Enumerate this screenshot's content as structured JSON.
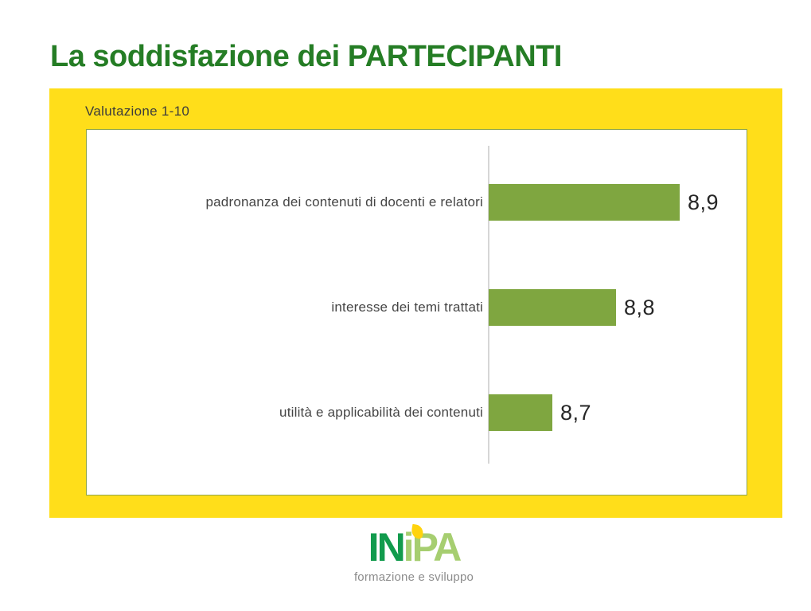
{
  "slide": {
    "title": "La soddisfazione dei PARTECIPANTI",
    "chart_panel_subtitle": "Valutazione 1-10"
  },
  "chart_data": {
    "type": "bar",
    "orientation": "horizontal",
    "title": "Valutazione 1-10",
    "categories": [
      "padronanza dei contenuti di docenti e relatori",
      "interesse dei temi trattati",
      "utilità e applicabilità dei contenuti"
    ],
    "values": [
      8.9,
      8.8,
      8.7
    ],
    "xlim": [
      8.6,
      9.0
    ],
    "gridlines": false,
    "legend": false,
    "bar_color": "#7FA640",
    "axis_color": "#D6D6D6",
    "rows": [
      {
        "label": "padronanza dei contenuti di docenti e relatori",
        "value": 8.9,
        "value_label": "8,9"
      },
      {
        "label": "interesse dei temi trattati",
        "value": 8.8,
        "value_label": "8,8"
      },
      {
        "label": "utilità e applicabilità dei contenuti",
        "value": 8.7,
        "value_label": "8,7"
      }
    ]
  },
  "colors": {
    "title_green": "#257D25",
    "panel_yellow": "#FFDE1A",
    "chart_border": "#8FA44C",
    "logo_dark_green": "#129B4D",
    "logo_light_green": "#A6CE70",
    "logo_leaf_yellow": "#FFD30E",
    "tagline_gray": "#8C8C8C"
  },
  "logo": {
    "text": "INiPA",
    "part1": "IN",
    "part2": "i",
    "part3": "PA",
    "tagline": "formazione e sviluppo"
  }
}
